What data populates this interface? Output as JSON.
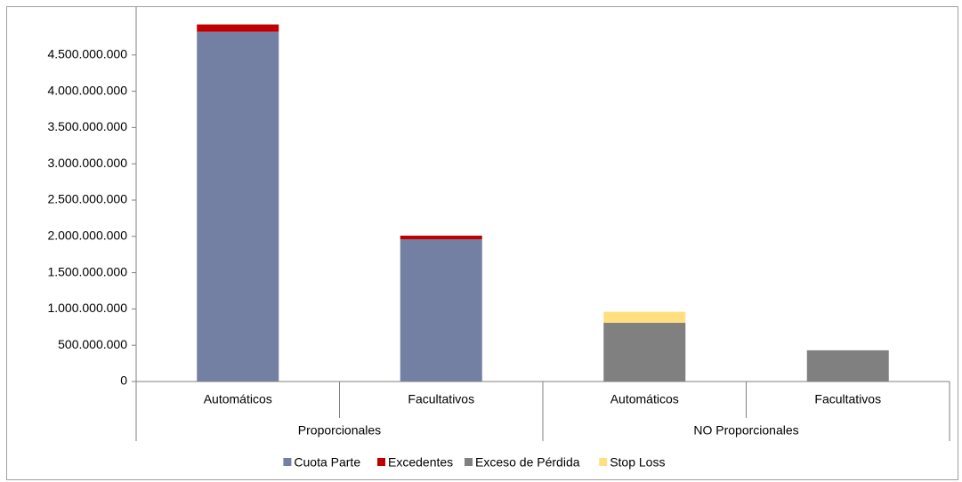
{
  "chart_data": {
    "type": "bar",
    "stacked": true,
    "categories": [
      "Automáticos",
      "Facultativos",
      "Automáticos",
      "Facultativos"
    ],
    "groups": [
      {
        "name": "Proporcionales",
        "size": 2
      },
      {
        "name": "NO Proporcionales",
        "size": 2
      }
    ],
    "series": [
      {
        "name": "Cuota Parte",
        "color": "#737fa3",
        "values": [
          4820000000,
          1960000000,
          null,
          null
        ]
      },
      {
        "name": "Excedentes",
        "color": "#c00000",
        "values": [
          100000000,
          50000000,
          null,
          null
        ]
      },
      {
        "name": "Exceso de Pérdida",
        "color": "#808080",
        "values": [
          null,
          null,
          810000000,
          430000000
        ]
      },
      {
        "name": "Stop Loss",
        "color": "#ffdf80",
        "values": [
          null,
          null,
          150000000,
          null
        ]
      }
    ],
    "ylim": [
      0,
      5000000000
    ],
    "yticks": [
      0,
      {
        "value": 500000000,
        "label": "500.000.000"
      },
      {
        "value": 1000000000,
        "label": "1.000.000.000"
      },
      {
        "value": 1500000000,
        "label": "1.500.000.000"
      },
      {
        "value": 2000000000,
        "label": "2.000.000.000"
      },
      {
        "value": 2500000000,
        "label": "2.500.000.000"
      },
      {
        "value": 3000000000,
        "label": "3.000.000.000"
      },
      {
        "value": 3500000000,
        "label": "3.500.000.000"
      },
      {
        "value": 4000000000,
        "label": "4.000.000.000"
      },
      {
        "value": 4500000000,
        "label": "4.500.000.000"
      }
    ],
    "legend": "bottom"
  }
}
